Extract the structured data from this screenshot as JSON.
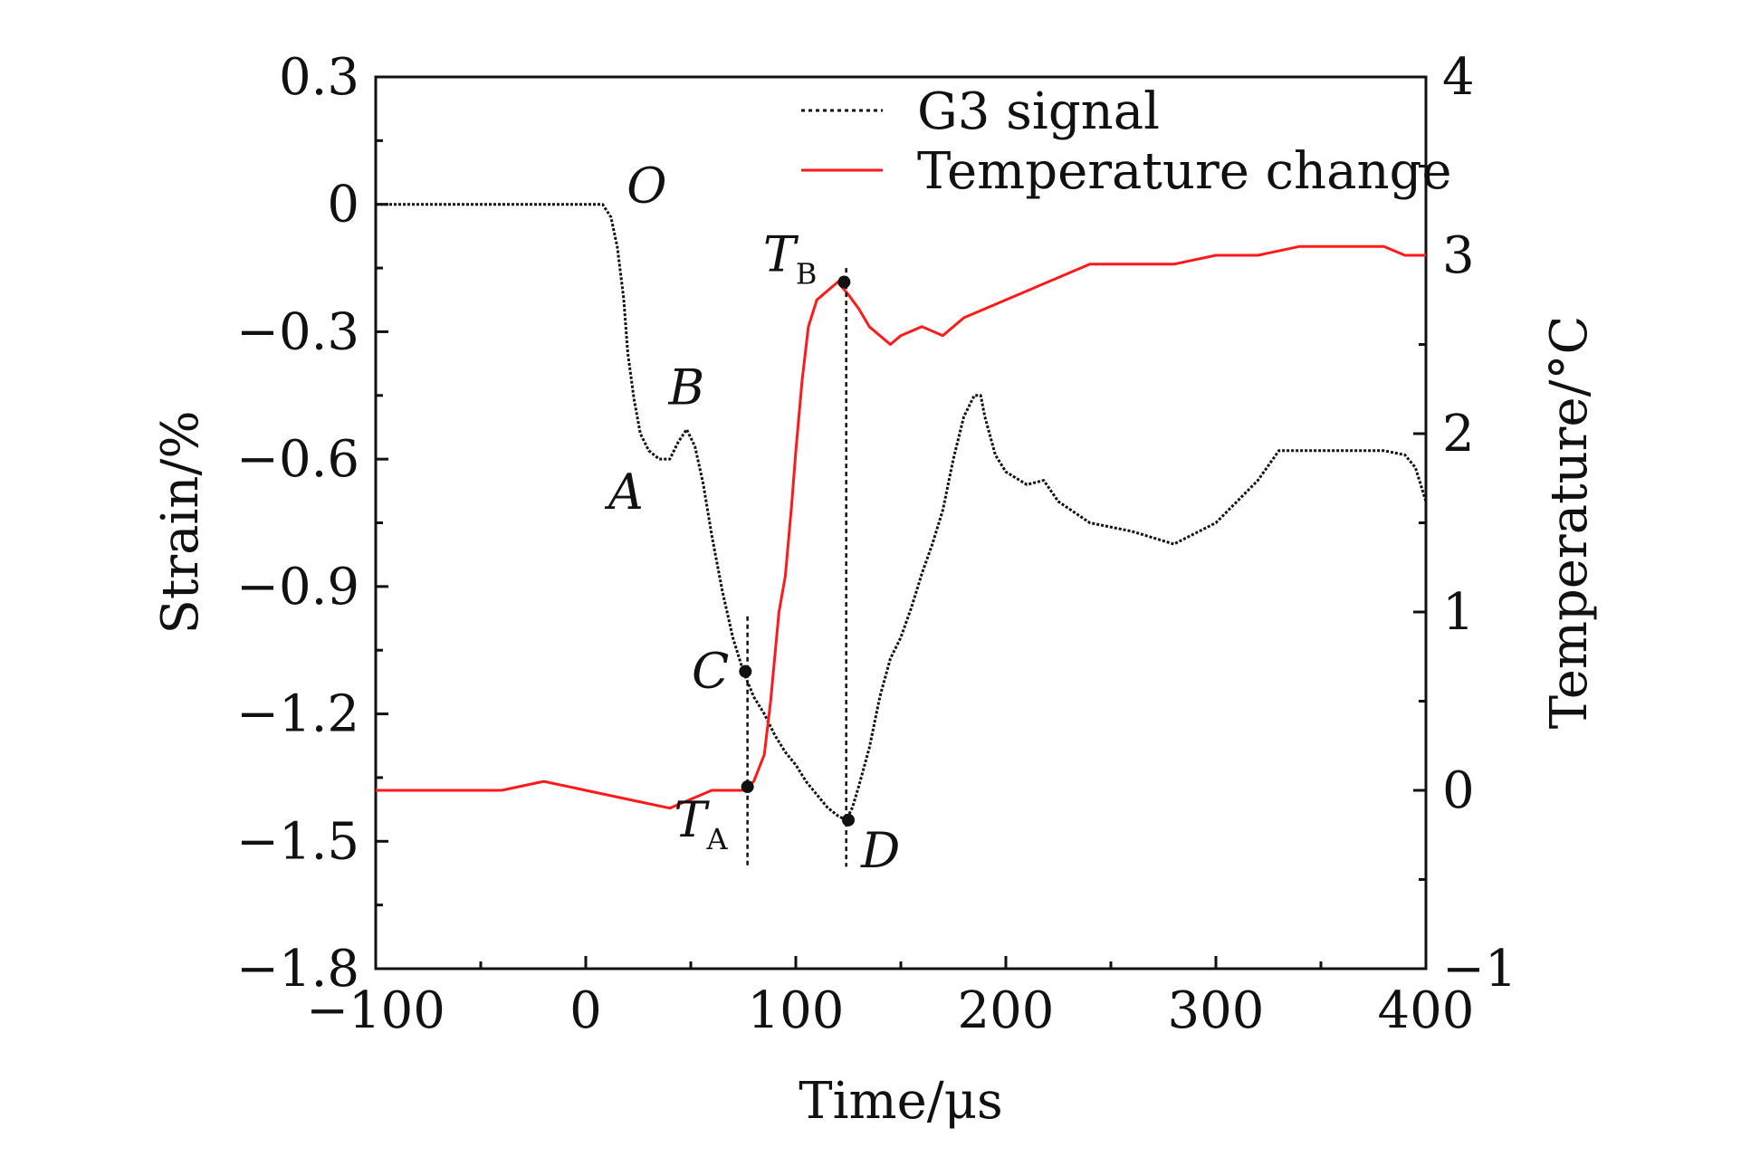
{
  "chart_data": {
    "type": "line",
    "title": "",
    "xlabel": "Time/μs",
    "ylabel_left": "Strain/%",
    "ylabel_right": "Temperature/°C",
    "xlim": [
      -100,
      400
    ],
    "ylim_left": [
      -1.8,
      0.3
    ],
    "ylim_right": [
      -1,
      4
    ],
    "x_ticks": [
      "−100",
      "0",
      "100",
      "200",
      "300",
      "400"
    ],
    "x_tick_values": [
      -100,
      0,
      100,
      200,
      300,
      400
    ],
    "y_left_ticks": [
      "0.3",
      "0",
      "−0.3",
      "−0.6",
      "−0.9",
      "−1.2",
      "−1.5",
      "−1.8"
    ],
    "y_left_tick_values": [
      0.3,
      0,
      -0.3,
      -0.6,
      -0.9,
      -1.2,
      -1.5,
      -1.8
    ],
    "y_right_ticks": [
      "4",
      "3",
      "2",
      "1",
      "0",
      "−1"
    ],
    "y_right_tick_values": [
      4,
      3,
      2,
      1,
      0,
      -1
    ],
    "legend_position": "top-right",
    "series": [
      {
        "name": "G3 signal",
        "axis": "left",
        "color": "#111111",
        "dash": "dotted",
        "x": [
          -100,
          0,
          8,
          12,
          15,
          18,
          20,
          23,
          26,
          30,
          35,
          40,
          44,
          48,
          52,
          56,
          60,
          65,
          70,
          75,
          80,
          85,
          90,
          95,
          100,
          105,
          110,
          115,
          120,
          124,
          127,
          130,
          135,
          140,
          145,
          150,
          155,
          160,
          165,
          170,
          175,
          180,
          185,
          188,
          190,
          195,
          200,
          210,
          218,
          225,
          240,
          260,
          280,
          300,
          320,
          330,
          345,
          360,
          380,
          390,
          395,
          400
        ],
        "values": [
          0,
          0,
          0,
          -0.03,
          -0.1,
          -0.22,
          -0.35,
          -0.46,
          -0.54,
          -0.58,
          -0.6,
          -0.6,
          -0.56,
          -0.53,
          -0.57,
          -0.66,
          -0.78,
          -0.91,
          -1.02,
          -1.1,
          -1.16,
          -1.2,
          -1.25,
          -1.29,
          -1.32,
          -1.36,
          -1.39,
          -1.42,
          -1.44,
          -1.45,
          -1.42,
          -1.37,
          -1.28,
          -1.16,
          -1.07,
          -1.02,
          -0.95,
          -0.87,
          -0.8,
          -0.72,
          -0.6,
          -0.5,
          -0.45,
          -0.45,
          -0.5,
          -0.59,
          -0.63,
          -0.66,
          -0.65,
          -0.7,
          -0.75,
          -0.77,
          -0.8,
          -0.75,
          -0.65,
          -0.58,
          -0.58,
          -0.58,
          -0.58,
          -0.59,
          -0.62,
          -0.7
        ]
      },
      {
        "name": "Temperature change",
        "axis": "right",
        "color": "#ff1a1a",
        "dash": "solid",
        "x": [
          -100,
          -80,
          -60,
          -40,
          -20,
          0,
          20,
          40,
          60,
          70,
          75,
          80,
          85,
          88,
          92,
          95,
          98,
          100,
          103,
          106,
          110,
          115,
          120,
          125,
          130,
          135,
          140,
          145,
          150,
          160,
          170,
          180,
          190,
          200,
          220,
          240,
          260,
          280,
          300,
          320,
          340,
          360,
          380,
          390,
          400
        ],
        "values": [
          0,
          0,
          0,
          0,
          0.05,
          0,
          -0.05,
          -0.1,
          0,
          0,
          0,
          0.05,
          0.2,
          0.5,
          1.0,
          1.2,
          1.6,
          1.9,
          2.3,
          2.6,
          2.75,
          2.8,
          2.85,
          2.78,
          2.7,
          2.6,
          2.55,
          2.5,
          2.55,
          2.6,
          2.55,
          2.65,
          2.7,
          2.75,
          2.85,
          2.95,
          2.95,
          2.95,
          3.0,
          3.0,
          3.05,
          3.05,
          3.05,
          3.0,
          3.0
        ]
      }
    ],
    "vertical_markers": [
      {
        "x": 77,
        "y_top_left": -0.97,
        "y_bottom_left": -1.56
      },
      {
        "x": 124,
        "y_top_left": -0.15,
        "y_bottom_left": -1.56
      }
    ],
    "points": [
      {
        "label": "O",
        "x": 10,
        "axis": "left",
        "y": 0.0,
        "marker": false,
        "anchor": "right-top"
      },
      {
        "label": "A",
        "x": 37,
        "axis": "left",
        "y": -0.6,
        "marker": false,
        "anchor": "below-left"
      },
      {
        "label": "B",
        "x": 48,
        "axis": "left",
        "y": -0.53,
        "marker": false,
        "anchor": "above"
      },
      {
        "label": "C",
        "x": 76,
        "axis": "left",
        "y": -1.1,
        "marker": true,
        "anchor": "left"
      },
      {
        "label": "D",
        "x": 125,
        "axis": "left",
        "y": -1.45,
        "marker": true,
        "anchor": "below-right"
      },
      {
        "label": "T",
        "sub": "A",
        "x": 77,
        "axis": "right",
        "y": 0.02,
        "marker": true,
        "anchor": "below-left"
      },
      {
        "label": "T",
        "sub": "B",
        "x": 123,
        "axis": "right",
        "y": 2.85,
        "marker": true,
        "anchor": "above-left"
      }
    ]
  }
}
